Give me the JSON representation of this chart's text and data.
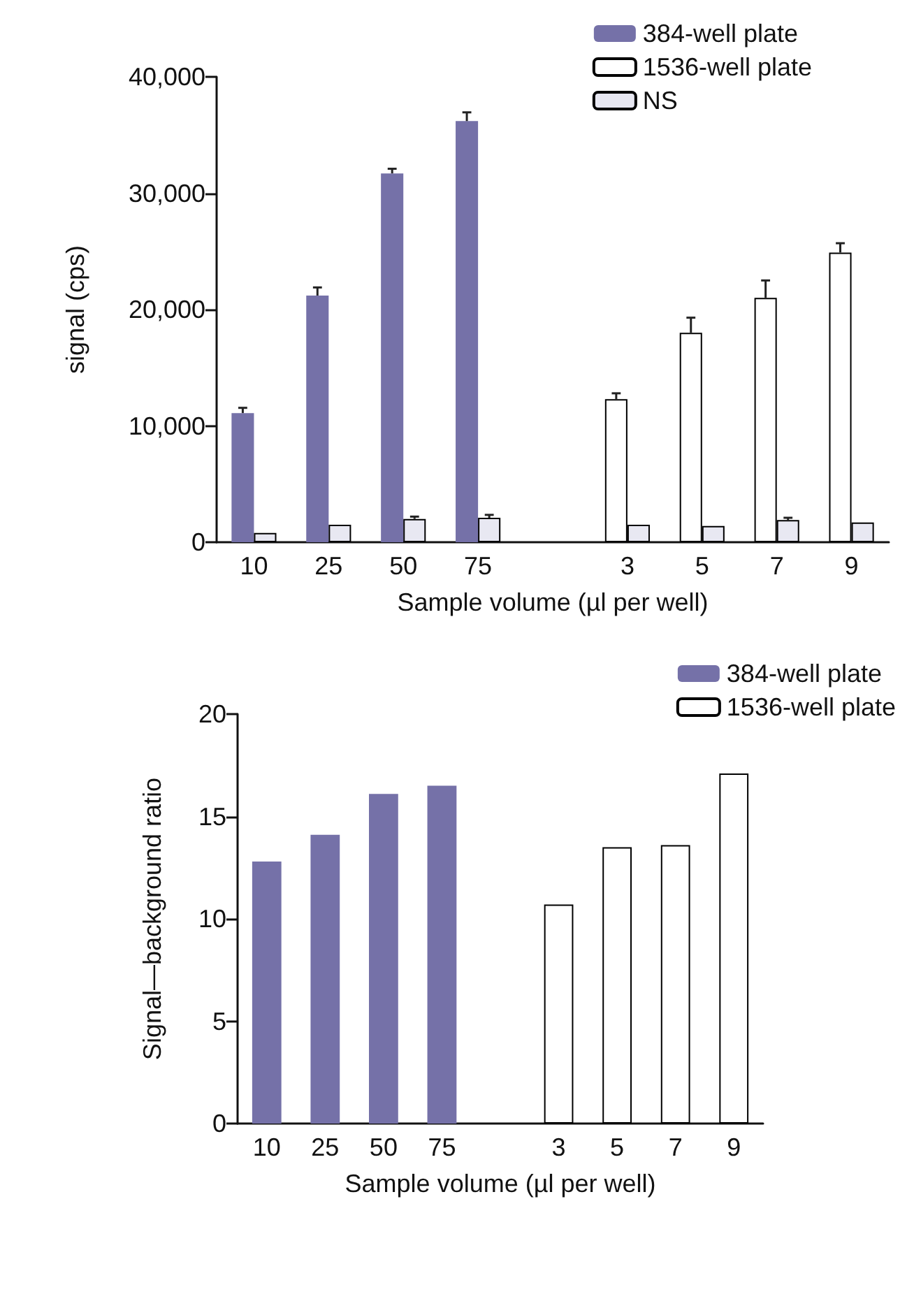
{
  "chart_data": [
    {
      "type": "bar",
      "xlabel": "Sample volume (µl per well)",
      "ylabel": "signal (cps)",
      "categories": [
        "10",
        "25",
        "50",
        "75",
        null,
        "3",
        "5",
        "7",
        "9"
      ],
      "series": [
        {
          "name": "384-well plate",
          "color": "#7571a8",
          "values": [
            11100,
            21200,
            31700,
            36200,
            null,
            null,
            null,
            null,
            null
          ],
          "errors": [
            [
              11100,
              11550
            ],
            [
              21200,
              21900
            ],
            [
              31700,
              32100
            ],
            [
              36200,
              36950
            ],
            null,
            null,
            null,
            null,
            null
          ]
        },
        {
          "name": "1536-well plate",
          "color": "#ffffff",
          "values": [
            null,
            null,
            null,
            null,
            null,
            12300,
            18000,
            21000,
            24900
          ],
          "errors": [
            null,
            null,
            null,
            null,
            null,
            [
              12300,
              12800
            ],
            [
              18000,
              19300
            ],
            [
              21000,
              22500
            ],
            [
              24900,
              25700
            ]
          ]
        },
        {
          "name": "NS",
          "color": "#e8e8f2",
          "values": [
            800,
            1500,
            2000,
            2100,
            null,
            1500,
            1400,
            1900,
            1700
          ],
          "errors": [
            null,
            null,
            [
              2000,
              2200
            ],
            [
              2100,
              2350
            ],
            null,
            null,
            null,
            [
              1900,
              2100
            ],
            null
          ]
        }
      ],
      "ylim": [
        0,
        40000
      ],
      "yticks": [
        0,
        {
          "value": 10000,
          "label": "10,000"
        },
        {
          "value": 20000,
          "label": "20,000"
        },
        {
          "value": 30000,
          "label": "30,000"
        },
        {
          "value": 40000,
          "label": "40,000"
        }
      ],
      "grid": false,
      "legend": "top right"
    },
    {
      "type": "bar",
      "xlabel": "Sample volume (µl per well)",
      "ylabel": "Signal—background ratio",
      "categories": [
        "10",
        "25",
        "50",
        "75",
        null,
        "3",
        "5",
        "7",
        "9"
      ],
      "series": [
        {
          "name": "384-well plate",
          "color": "#7571a8",
          "values": [
            12.8,
            14.1,
            16.1,
            16.5,
            null,
            null,
            null,
            null,
            null
          ]
        },
        {
          "name": "1536-well plate",
          "color": "#ffffff",
          "values": [
            null,
            null,
            null,
            null,
            null,
            10.7,
            13.5,
            13.6,
            17.1
          ]
        }
      ],
      "ylim": [
        0,
        20
      ],
      "yticks": [
        0,
        5,
        10,
        15,
        20
      ],
      "grid": false,
      "legend": "top right"
    }
  ]
}
